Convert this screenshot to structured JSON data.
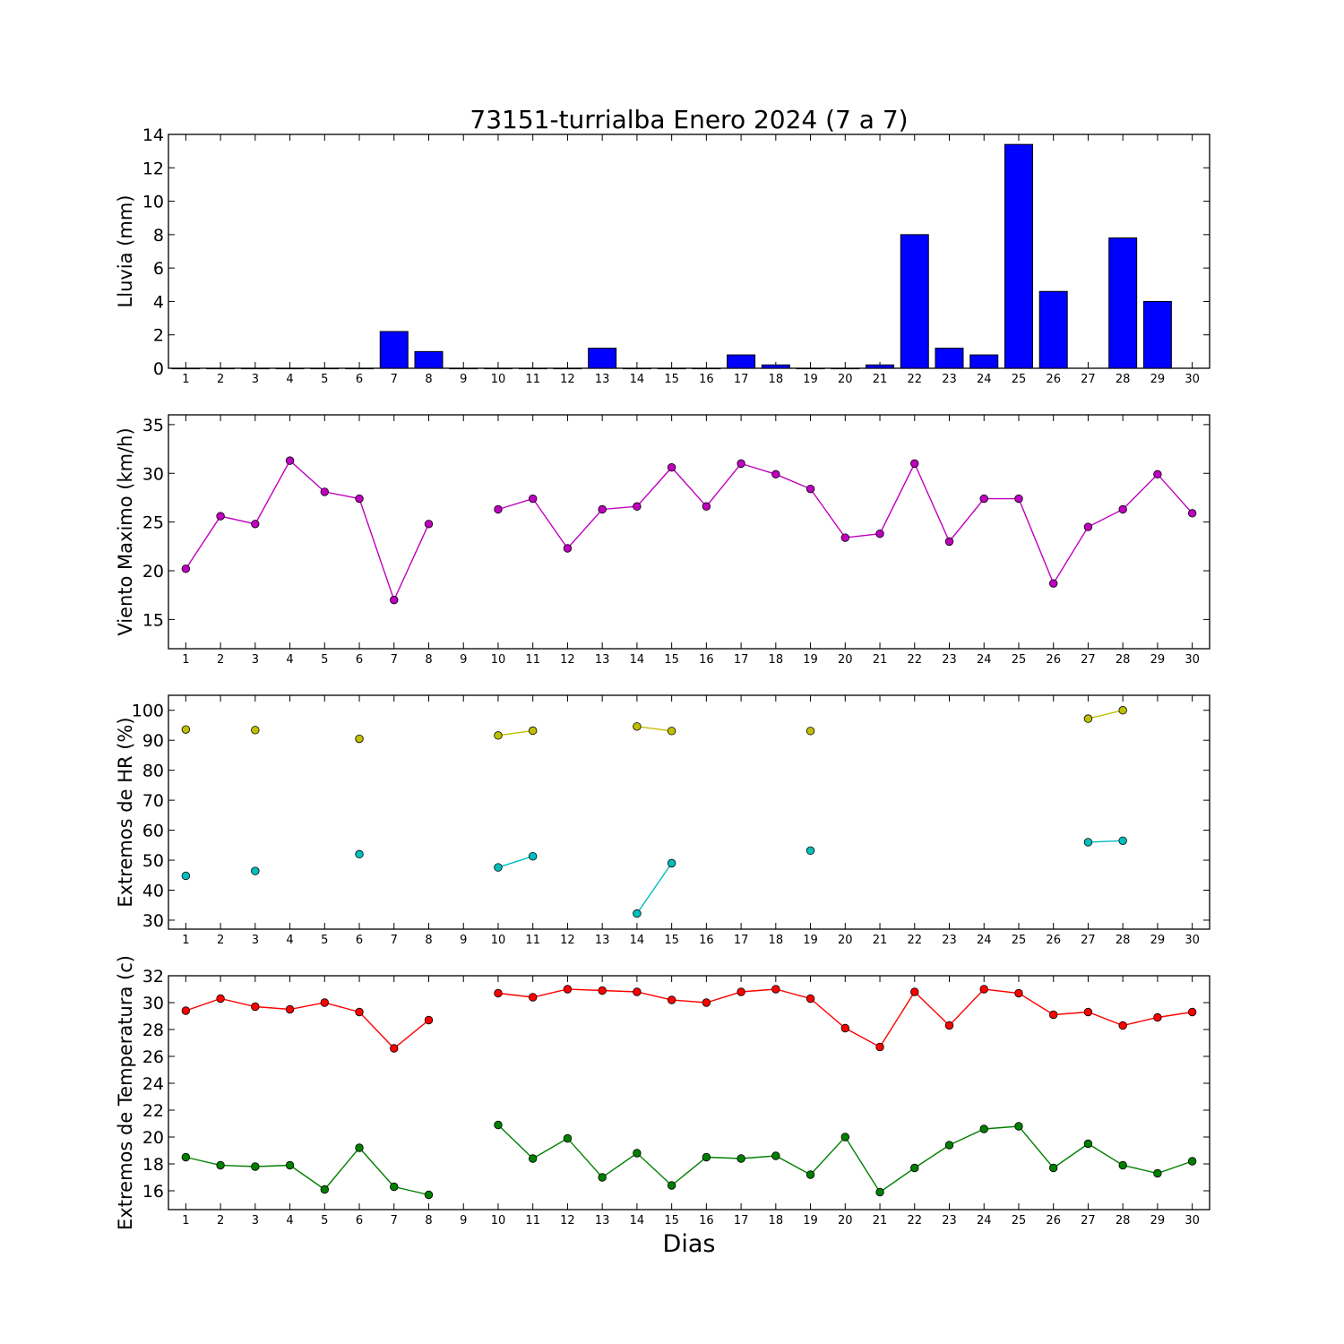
{
  "title": "73151-turrialba Enero 2024  (7 a 7)",
  "xlabel": "Dias",
  "colors": {
    "rain": "#0000ff",
    "wind": "#bf00bf",
    "hr_max": "#bfbf00",
    "hr_min": "#00bfbf",
    "temp_max": "#ff0000",
    "temp_min": "#008000"
  },
  "chart_data": [
    {
      "type": "bar",
      "ylabel": "Lluvia (mm)",
      "ylim": [
        0,
        14
      ],
      "yticks": [
        0,
        2,
        4,
        6,
        8,
        10,
        12,
        14
      ],
      "xlim": [
        0.5,
        30.5
      ],
      "categories": [
        1,
        2,
        3,
        4,
        5,
        6,
        7,
        8,
        9,
        10,
        11,
        12,
        13,
        14,
        15,
        16,
        17,
        18,
        19,
        20,
        21,
        22,
        23,
        24,
        25,
        26,
        27,
        28,
        29,
        30
      ],
      "series": [
        {
          "values": [
            0,
            0,
            0,
            0,
            0,
            0,
            2.2,
            1.0,
            0,
            0,
            0,
            0,
            1.2,
            0,
            0,
            0,
            0.8,
            0.2,
            0,
            0,
            0.2,
            8.0,
            1.2,
            0.8,
            13.4,
            4.6,
            null,
            7.8,
            4.0,
            null
          ]
        }
      ]
    },
    {
      "type": "line",
      "ylabel": "Viento Maximo (km/h)",
      "ylim": [
        12,
        36
      ],
      "yticks": [
        15,
        20,
        25,
        30,
        35
      ],
      "xlim": [
        0.5,
        30.5
      ],
      "x": [
        1,
        2,
        3,
        4,
        5,
        6,
        7,
        8,
        9,
        10,
        11,
        12,
        13,
        14,
        15,
        16,
        17,
        18,
        19,
        20,
        21,
        22,
        23,
        24,
        25,
        26,
        27,
        28,
        29,
        30
      ],
      "series": [
        {
          "values": [
            20.2,
            25.6,
            24.8,
            31.3,
            28.1,
            27.4,
            17.0,
            24.8,
            null,
            26.3,
            27.4,
            22.3,
            26.3,
            26.6,
            30.6,
            26.6,
            31.0,
            29.9,
            28.4,
            23.4,
            23.8,
            31.0,
            23.0,
            27.4,
            27.4,
            18.7,
            24.5,
            26.3,
            29.9,
            25.9
          ]
        }
      ]
    },
    {
      "type": "line",
      "ylabel": "Extremos de HR (%)",
      "ylim": [
        27,
        105
      ],
      "yticks": [
        30,
        40,
        50,
        60,
        70,
        80,
        90,
        100
      ],
      "xlim": [
        0.5,
        30.5
      ],
      "x": [
        1,
        2,
        3,
        4,
        5,
        6,
        7,
        8,
        9,
        10,
        11,
        12,
        13,
        14,
        15,
        16,
        17,
        18,
        19,
        20,
        21,
        22,
        23,
        24,
        25,
        26,
        27,
        28,
        29,
        30
      ],
      "series": [
        {
          "values": [
            93.6,
            null,
            93.4,
            null,
            null,
            90.5,
            null,
            null,
            null,
            91.6,
            93.2,
            null,
            null,
            94.6,
            93.1,
            null,
            null,
            null,
            93.1,
            null,
            null,
            null,
            null,
            null,
            null,
            null,
            97.2,
            100.0,
            null,
            null
          ]
        },
        {
          "values": [
            44.8,
            null,
            46.4,
            null,
            null,
            52.0,
            null,
            null,
            null,
            47.6,
            51.3,
            null,
            null,
            32.2,
            49.0,
            null,
            null,
            null,
            53.2,
            null,
            null,
            null,
            null,
            null,
            null,
            null,
            56.0,
            56.5,
            null,
            null
          ]
        }
      ]
    },
    {
      "type": "line",
      "ylabel": "Extremos de Temperatura (c)",
      "ylim": [
        14.6,
        32
      ],
      "yticks": [
        16,
        18,
        20,
        22,
        24,
        26,
        28,
        30,
        32
      ],
      "xlim": [
        0.5,
        30.5
      ],
      "x": [
        1,
        2,
        3,
        4,
        5,
        6,
        7,
        8,
        9,
        10,
        11,
        12,
        13,
        14,
        15,
        16,
        17,
        18,
        19,
        20,
        21,
        22,
        23,
        24,
        25,
        26,
        27,
        28,
        29,
        30
      ],
      "series": [
        {
          "values": [
            29.4,
            30.3,
            29.7,
            29.5,
            30.0,
            29.3,
            26.6,
            28.7,
            null,
            30.7,
            30.4,
            31.0,
            30.9,
            30.8,
            30.2,
            30.0,
            30.8,
            31.0,
            30.3,
            28.1,
            26.7,
            30.8,
            28.3,
            31.0,
            30.7,
            29.1,
            29.3,
            28.3,
            28.9,
            29.3
          ]
        },
        {
          "values": [
            18.5,
            17.9,
            17.8,
            17.9,
            16.1,
            19.2,
            16.3,
            15.7,
            null,
            20.9,
            18.4,
            19.9,
            17.0,
            18.8,
            16.4,
            18.5,
            18.4,
            18.6,
            17.2,
            20.0,
            15.9,
            17.7,
            19.4,
            20.6,
            20.8,
            17.7,
            19.5,
            17.9,
            17.3,
            18.2
          ]
        }
      ]
    }
  ]
}
